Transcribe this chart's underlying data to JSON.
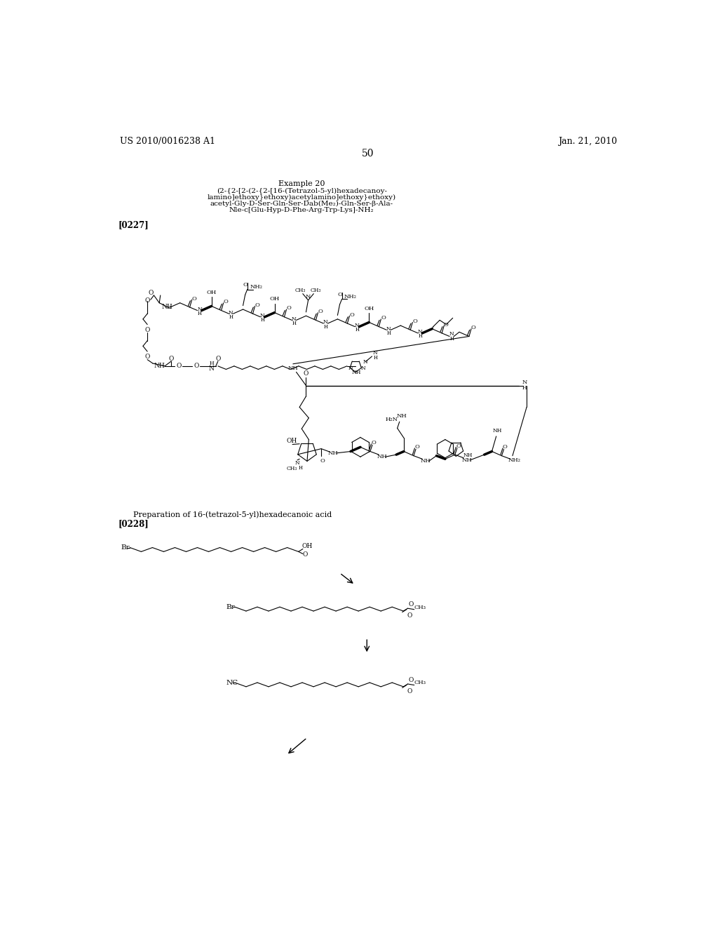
{
  "bg_color": "#ffffff",
  "header_left": "US 2010/0016238 A1",
  "header_right": "Jan. 21, 2010",
  "page_number": "50",
  "example_title": "Example 20",
  "subtitle_lines": [
    "(2-{2-[2-(2-{2-[16-(Tetrazol-5-yl)hexadecanoy-",
    "lamino]ethoxy}ethoxy)acetylamino]ethoxy}ethoxy)",
    "acetyl-Gly-D-Ser-Gln-Ser-Dab(Me₂)-Gln-Ser-β-Ala-",
    "Nle-c[Glu-Hyp-D-Phe-Arg-Trp-Lys]-NH₂"
  ],
  "para_0227": "[0227]",
  "prep_title": "Preparation of 16-(tetrazol-5-yl)hexadecanoic acid",
  "para_0228": "[0228]"
}
